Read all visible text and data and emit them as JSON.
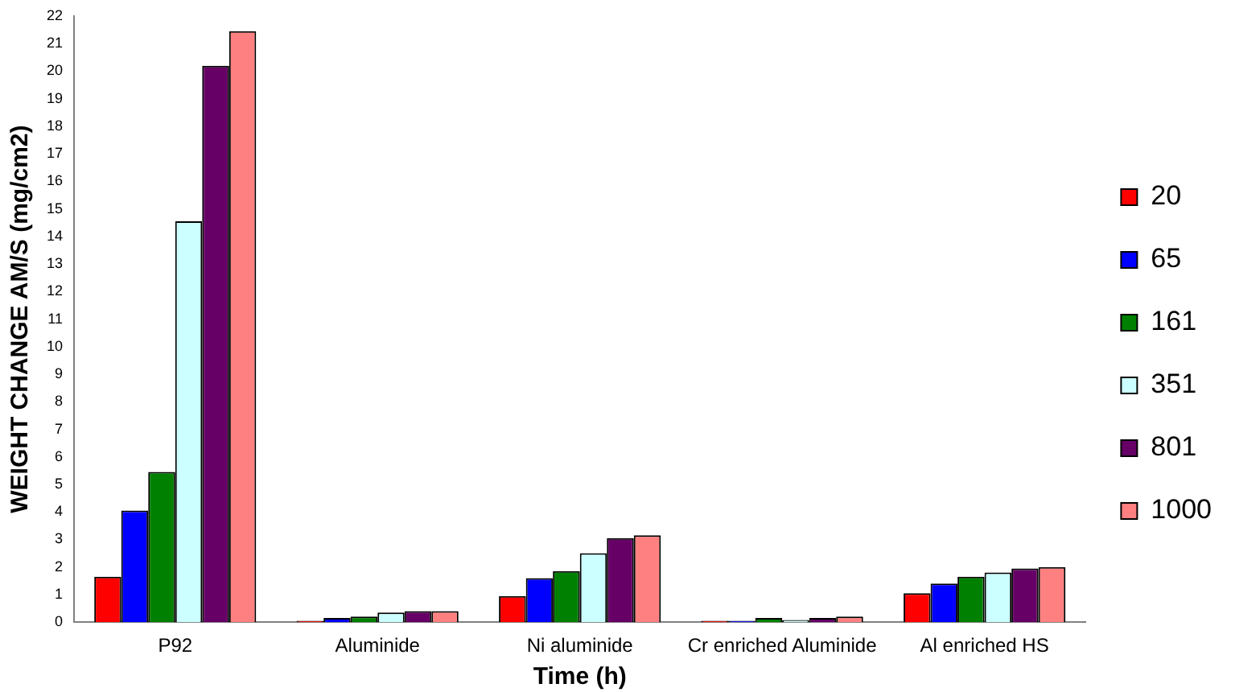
{
  "chart_data": {
    "type": "bar",
    "xlabel": "Time (h)",
    "ylabel": "WEIGHT CHANGE AM/S (mg/cm2)",
    "categories": [
      "P92",
      "Aluminide",
      "Ni aluminide",
      "Cr enriched Aluminide",
      "Al enriched HS"
    ],
    "series": [
      {
        "name": "20",
        "color": "#ff0000",
        "values": [
          1.65,
          0.05,
          0.95,
          0.05,
          1.05
        ]
      },
      {
        "name": "65",
        "color": "#0000ff",
        "values": [
          4.05,
          0.15,
          1.6,
          0.05,
          1.4
        ]
      },
      {
        "name": "161",
        "color": "#008000",
        "values": [
          5.45,
          0.2,
          1.85,
          0.15,
          1.65
        ]
      },
      {
        "name": "351",
        "color": "#ccffff",
        "values": [
          14.55,
          0.35,
          2.5,
          0.08,
          1.8
        ]
      },
      {
        "name": "801",
        "color": "#660066",
        "values": [
          20.2,
          0.4,
          3.05,
          0.15,
          1.95
        ]
      },
      {
        "name": "1000",
        "color": "#ff8080",
        "values": [
          21.45,
          0.4,
          3.15,
          0.2,
          2.0
        ]
      }
    ],
    "ylim": [
      0,
      22
    ],
    "yticks": [
      0,
      1,
      2,
      3,
      4,
      5,
      6,
      7,
      8,
      9,
      10,
      11,
      12,
      13,
      14,
      15,
      16,
      17,
      18,
      19,
      20,
      21,
      22
    ],
    "grid": false,
    "legend": "right"
  }
}
